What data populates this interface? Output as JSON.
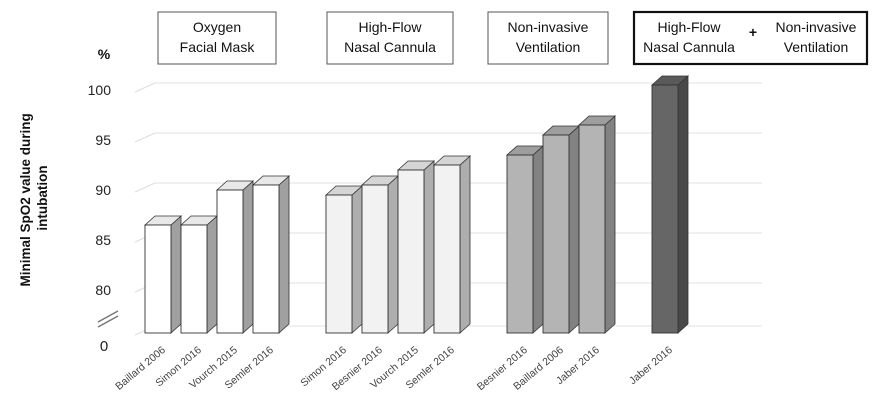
{
  "chart_data": {
    "type": "bar",
    "ylabel": "Minimal SpO2 value during intubation",
    "yunit": "%",
    "ylim": [
      77,
      101
    ],
    "yticks": [
      "80",
      "85",
      "90",
      "95",
      "100"
    ],
    "axis_break": true,
    "zero_label": "0",
    "grid": true,
    "groups": [
      {
        "label_lines": [
          "Oxygen",
          "Facial Mask"
        ],
        "box": "thin",
        "bar_color": "#ffffff",
        "categories": [
          "Baillard 2006",
          "Simon 2016",
          "Vourch 2015",
          "Semler 2016"
        ],
        "values": [
          86.5,
          86.5,
          90,
          90.5
        ]
      },
      {
        "label_lines": [
          "High-Flow",
          "Nasal Cannula"
        ],
        "box": "thin",
        "bar_color": "#f2f2f2",
        "categories": [
          "Simon 2016",
          "Besnier 2016",
          "Vourch 2015",
          "Semler 2016"
        ],
        "values": [
          89.5,
          90.5,
          92,
          92.5
        ]
      },
      {
        "label_lines": [
          "Non-invasive",
          "Ventilation"
        ],
        "box": "thin",
        "bar_color": "#b4b4b4",
        "categories": [
          "Besnier 2016",
          "Baillard 2006",
          "Jaber 2016"
        ],
        "values": [
          93.5,
          95.5,
          96.5
        ]
      },
      {
        "label_lines": [
          "High-Flow",
          "Nasal Cannula"
        ],
        "plus": "+",
        "label_lines_2": [
          "Non-invasive",
          "Ventilation"
        ],
        "box": "thick",
        "bar_color": "#666666",
        "categories": [
          "Jaber 2016"
        ],
        "values": [
          100.5
        ]
      }
    ]
  }
}
